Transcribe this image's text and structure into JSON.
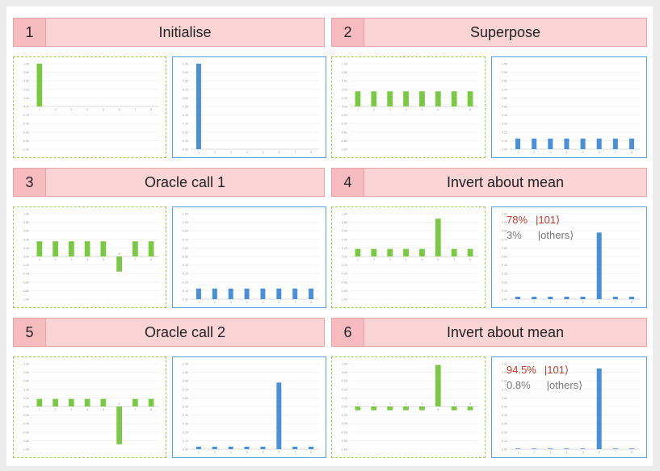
{
  "steps": [
    {
      "number": "1",
      "title": "Initialise"
    },
    {
      "number": "2",
      "title": "Superpose"
    },
    {
      "number": "3",
      "title": "Oracle call 1"
    },
    {
      "number": "4",
      "title": "Invert about mean"
    },
    {
      "number": "5",
      "title": "Oracle call 2"
    },
    {
      "number": "6",
      "title": "Invert about mean"
    }
  ],
  "annotations": {
    "step4": {
      "top_value": "78%",
      "top_label": "|101⟩",
      "other_value": "3%",
      "other_label": "|others⟩"
    },
    "step6": {
      "top_value": "94.5%",
      "top_label": "|101⟩",
      "other_value": "0.8%",
      "other_label": "|others⟩"
    }
  },
  "colors": {
    "amplitude": "#7ac943",
    "probability": "#4a90d9",
    "highlight": "#c0392b"
  },
  "chart_data": [
    {
      "type": "bar",
      "panel": "step1-amplitude",
      "categories": [
        "1",
        "2",
        "3",
        "4",
        "5",
        "6",
        "7",
        "8"
      ],
      "values": [
        1,
        0,
        0,
        0,
        0,
        0,
        0,
        0
      ],
      "ylim": [
        -1,
        1
      ],
      "yticks": [
        "1.00",
        "0.80",
        "0.60",
        "0.40",
        "0.20",
        "0.00",
        "-0.20",
        "-0.40",
        "-0.60",
        "-0.80",
        "-1.00"
      ]
    },
    {
      "type": "bar",
      "panel": "step1-probability",
      "categories": [
        "1",
        "2",
        "3",
        "4",
        "5",
        "6",
        "7",
        "8"
      ],
      "values": [
        1,
        0,
        0,
        0,
        0,
        0,
        0,
        0
      ],
      "ylim": [
        0,
        1
      ],
      "yticks": [
        "1.00",
        "0.90",
        "0.80",
        "0.70",
        "0.60",
        "0.50",
        "0.40",
        "0.30",
        "0.20",
        "0.10",
        "0.00"
      ]
    },
    {
      "type": "bar",
      "panel": "step2-amplitude",
      "categories": [
        "1",
        "2",
        "3",
        "4",
        "5",
        "6",
        "7",
        "8"
      ],
      "values": [
        0.354,
        0.354,
        0.354,
        0.354,
        0.354,
        0.354,
        0.354,
        0.354
      ],
      "ylim": [
        -1,
        1
      ],
      "yticks": [
        "1.00",
        "0.80",
        "0.60",
        "0.40",
        "0.20",
        "0.00",
        "-0.20",
        "-0.40",
        "-0.60",
        "-0.80",
        "-1.00"
      ]
    },
    {
      "type": "bar",
      "panel": "step2-probability",
      "categories": [
        "1",
        "2",
        "3",
        "4",
        "5",
        "6",
        "7",
        "8"
      ],
      "values": [
        0.125,
        0.125,
        0.125,
        0.125,
        0.125,
        0.125,
        0.125,
        0.125
      ],
      "ylim": [
        0,
        1
      ],
      "yticks": [
        "1.00",
        "0.90",
        "0.80",
        "0.70",
        "0.60",
        "0.50",
        "0.40",
        "0.30",
        "0.20",
        "0.10",
        "0.00"
      ]
    },
    {
      "type": "bar",
      "panel": "step3-amplitude",
      "categories": [
        "1",
        "2",
        "3",
        "4",
        "5",
        "6",
        "7",
        "8"
      ],
      "values": [
        0.354,
        0.354,
        0.354,
        0.354,
        0.354,
        -0.354,
        0.354,
        0.354
      ],
      "ylim": [
        -1,
        1
      ],
      "yticks": [
        "1.00",
        "0.80",
        "0.60",
        "0.40",
        "0.20",
        "0.00",
        "-0.20",
        "-0.40",
        "-0.60",
        "-0.80",
        "-1.00"
      ]
    },
    {
      "type": "bar",
      "panel": "step3-probability",
      "categories": [
        "1",
        "2",
        "3",
        "4",
        "5",
        "6",
        "7",
        "8"
      ],
      "values": [
        0.125,
        0.125,
        0.125,
        0.125,
        0.125,
        0.125,
        0.125,
        0.125
      ],
      "ylim": [
        0,
        1
      ],
      "yticks": [
        "1.00",
        "0.90",
        "0.80",
        "0.70",
        "0.60",
        "0.50",
        "0.40",
        "0.30",
        "0.20",
        "0.10",
        "0.00"
      ]
    },
    {
      "type": "bar",
      "panel": "step4-amplitude",
      "categories": [
        "1",
        "2",
        "3",
        "4",
        "5",
        "6",
        "7",
        "8"
      ],
      "values": [
        0.177,
        0.177,
        0.177,
        0.177,
        0.177,
        0.884,
        0.177,
        0.177
      ],
      "ylim": [
        -1,
        1
      ],
      "yticks": [
        "1.00",
        "0.80",
        "0.60",
        "0.40",
        "0.20",
        "0.00",
        "-0.20",
        "-0.40",
        "-0.60",
        "-0.80",
        "-1.00"
      ]
    },
    {
      "type": "bar",
      "panel": "step4-probability",
      "categories": [
        "1",
        "2",
        "3",
        "4",
        "5",
        "6",
        "7",
        "8"
      ],
      "values": [
        0.03,
        0.03,
        0.03,
        0.03,
        0.03,
        0.78,
        0.03,
        0.03
      ],
      "ylim": [
        0,
        1
      ],
      "yticks": [
        "1.00",
        "0.90",
        "0.80",
        "0.70",
        "0.60",
        "0.50",
        "0.40",
        "0.30",
        "0.20",
        "0.10",
        "0.00"
      ]
    },
    {
      "type": "bar",
      "panel": "step5-amplitude",
      "categories": [
        "1",
        "2",
        "3",
        "4",
        "5",
        "6",
        "7",
        "8"
      ],
      "values": [
        0.177,
        0.177,
        0.177,
        0.177,
        0.177,
        -0.884,
        0.177,
        0.177
      ],
      "ylim": [
        -1,
        1
      ],
      "yticks": [
        "1.00",
        "0.80",
        "0.60",
        "0.40",
        "0.20",
        "0.00",
        "-0.20",
        "-0.40",
        "-0.60",
        "-0.80",
        "-1.00"
      ]
    },
    {
      "type": "bar",
      "panel": "step5-probability",
      "categories": [
        "1",
        "2",
        "3",
        "4",
        "5",
        "6",
        "7",
        "8"
      ],
      "values": [
        0.03,
        0.03,
        0.03,
        0.03,
        0.03,
        0.78,
        0.03,
        0.03
      ],
      "ylim": [
        0,
        1
      ],
      "yticks": [
        "1.00",
        "0.90",
        "0.80",
        "0.70",
        "0.60",
        "0.50",
        "0.40",
        "0.30",
        "0.20",
        "0.10",
        "0.00"
      ]
    },
    {
      "type": "bar",
      "panel": "step6-amplitude",
      "categories": [
        "1",
        "2",
        "3",
        "4",
        "5",
        "6",
        "7",
        "8"
      ],
      "values": [
        -0.088,
        -0.088,
        -0.088,
        -0.088,
        -0.088,
        0.972,
        -0.088,
        -0.088
      ],
      "ylim": [
        -1,
        1
      ],
      "yticks": [
        "1.00",
        "0.80",
        "0.60",
        "0.40",
        "0.20",
        "0.00",
        "-0.20",
        "-0.40",
        "-0.60",
        "-0.80",
        "-1.00"
      ]
    },
    {
      "type": "bar",
      "panel": "step6-probability",
      "categories": [
        "1",
        "2",
        "3",
        "4",
        "5",
        "6",
        "7",
        "8"
      ],
      "values": [
        0.008,
        0.008,
        0.008,
        0.008,
        0.008,
        0.945,
        0.008,
        0.008
      ],
      "ylim": [
        0,
        1
      ],
      "yticks": [
        "1.00",
        "0.90",
        "0.80",
        "0.70",
        "0.60",
        "0.50",
        "0.40",
        "0.30",
        "0.20",
        "0.10",
        "0.00"
      ]
    }
  ]
}
